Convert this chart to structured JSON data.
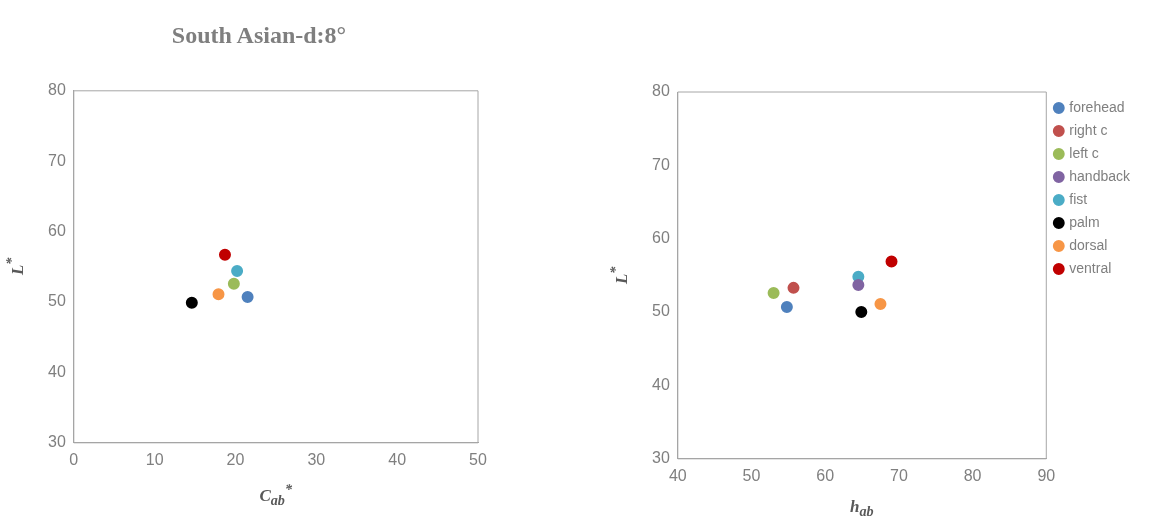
{
  "chart_data": [
    {
      "type": "scatter",
      "title": "South Asian-d:8°",
      "xlabel": "C$_{ab}$$^{*}$",
      "ylabel": "L$^{*}$",
      "xlim": [
        0,
        50
      ],
      "xticks": [
        0,
        10,
        20,
        30,
        40,
        50
      ],
      "ylim": [
        30,
        80
      ],
      "yticks": [
        30,
        40,
        50,
        60,
        70,
        80
      ],
      "marker": "circle",
      "legend": false,
      "grid": false,
      "series": [
        {
          "color": "#4f81bd",
          "x": [
            21.5
          ],
          "values": [
            50.7
          ]
        },
        {
          "color": "#c0504d",
          "x": [
            null
          ],
          "values": [
            null
          ]
        },
        {
          "color": "#9bbb59",
          "x": [
            19.8
          ],
          "values": [
            52.6
          ]
        },
        {
          "color": "#8064a2",
          "x": [
            null
          ],
          "values": [
            null
          ]
        },
        {
          "color": "#4bacc6",
          "x": [
            20.2
          ],
          "values": [
            54.4
          ]
        },
        {
          "color": "#000000",
          "x": [
            14.6
          ],
          "values": [
            49.9
          ]
        },
        {
          "color": "#f79646",
          "x": [
            17.9
          ],
          "values": [
            51.1
          ]
        },
        {
          "color": "#c00000",
          "x": [
            18.7
          ],
          "values": [
            56.7
          ]
        }
      ]
    },
    {
      "type": "scatter",
      "xlabel": "h$_{ab}$",
      "ylabel": "L$^{*}$",
      "xlim": [
        40,
        90
      ],
      "xticks": [
        40,
        50,
        60,
        70,
        80,
        90
      ],
      "ylim": [
        30,
        80
      ],
      "yticks": [
        30,
        40,
        50,
        60,
        70,
        80
      ],
      "marker": "circle",
      "legend": "top right",
      "grid": false,
      "series": [
        {
          "name": "forehead",
          "color": "#4f81bd",
          "x": [
            54.8
          ],
          "values": [
            50.7
          ]
        },
        {
          "name": "right c",
          "color": "#c0504d",
          "x": [
            55.7
          ],
          "values": [
            53.3
          ]
        },
        {
          "name": "left c",
          "color": "#9bbb59",
          "x": [
            53.0
          ],
          "values": [
            52.6
          ]
        },
        {
          "name": "handback",
          "color": "#8064a2",
          "x": [
            64.5
          ],
          "values": [
            53.7
          ]
        },
        {
          "name": "fist",
          "color": "#4bacc6",
          "x": [
            64.5
          ],
          "values": [
            54.8
          ]
        },
        {
          "name": "palm",
          "color": "#000000",
          "x": [
            64.9
          ],
          "values": [
            50.0
          ]
        },
        {
          "name": "dorsal",
          "color": "#f79646",
          "x": [
            67.5
          ],
          "values": [
            51.1
          ]
        },
        {
          "name": "ventral",
          "color": "#c00000",
          "x": [
            69.0
          ],
          "values": [
            56.9
          ]
        }
      ]
    }
  ]
}
